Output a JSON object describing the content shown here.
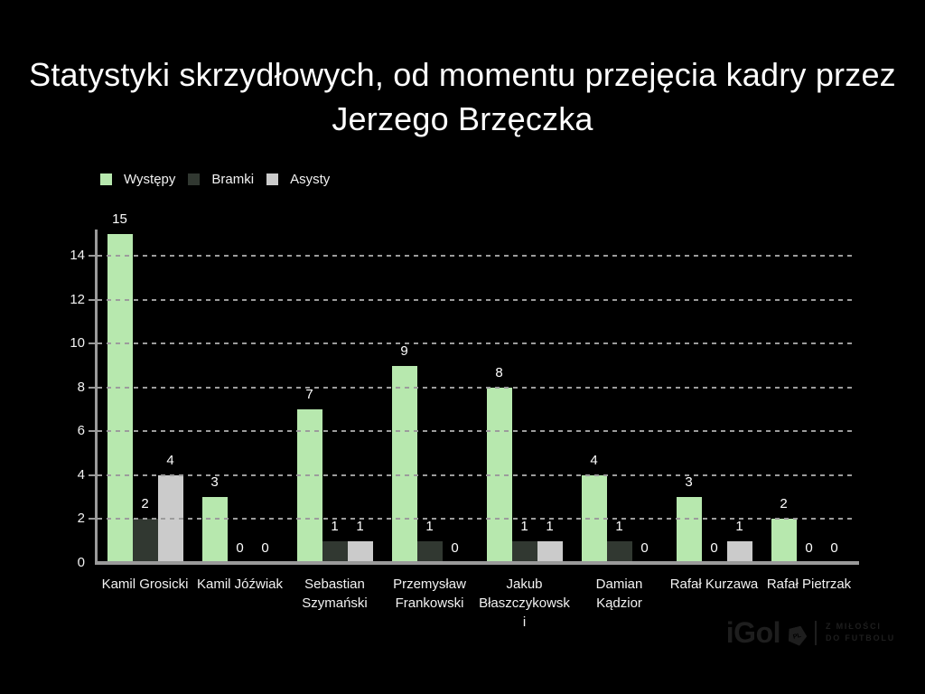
{
  "title": "Statystyki skrzydłowych, od momentu przejęcia kadry przez Jerzego Brzęczka",
  "chart_data": {
    "type": "bar",
    "title": "Statystyki skrzydłowych, od momentu przejęcia kadry przez Jerzego Brzęczka",
    "categories": [
      "Kamil Grosicki",
      "Kamil Jóźwiak",
      "Sebastian Szymański",
      "Przemysław Frankowski",
      "Jakub Błaszczykowski",
      "Damian Kądzior",
      "Rafał Kurzawa",
      "Rafał Pietrzak"
    ],
    "series": [
      {
        "name": "Występy",
        "color": "#b7e8ae",
        "values": [
          15,
          3,
          7,
          9,
          8,
          4,
          3,
          2
        ]
      },
      {
        "name": "Bramki",
        "color": "#313831",
        "values": [
          2,
          0,
          1,
          1,
          1,
          1,
          0,
          0
        ]
      },
      {
        "name": "Asysty",
        "color": "#cbcbcb",
        "values": [
          4,
          0,
          1,
          0,
          1,
          0,
          1,
          0
        ]
      }
    ],
    "yticks": [
      0,
      2,
      4,
      6,
      8,
      10,
      12,
      14
    ],
    "ylim": [
      0,
      15
    ],
    "xlabel": "",
    "ylabel": "",
    "grid": "horizontal-dashed",
    "legend_position": "top-left",
    "data_labels": true,
    "background": "#000000",
    "text_color": "#ffffff",
    "axis_color": "#9a9a9a"
  },
  "logo": {
    "brand": "iGol",
    "badge": "PL",
    "tagline_line1": "Z MIŁOŚCI",
    "tagline_line2": "DO FUTBOLU"
  }
}
